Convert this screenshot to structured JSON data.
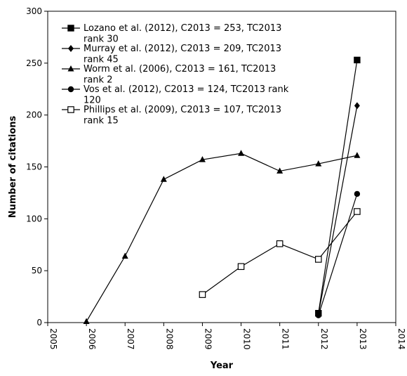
{
  "chart_data": {
    "type": "line",
    "xlabel": "Year",
    "ylabel": "Number of citations",
    "xlim": [
      2005,
      2014
    ],
    "ylim": [
      0,
      300
    ],
    "x_ticks": [
      "2005",
      "2006",
      "2007",
      "2008",
      "2009",
      "2010",
      "2011",
      "2012",
      "2013",
      "2014"
    ],
    "y_ticks": [
      "0",
      "50",
      "100",
      "150",
      "200",
      "250",
      "300"
    ],
    "grid": false,
    "legend_position": "top-left",
    "series": [
      {
        "name": "Lozano et al. (2012), C2013 = 253, TC2013 rank 30",
        "legend_lines": [
          "Lozano et al. (2012), C2013 = 253, TC2013",
          "rank 30"
        ],
        "marker": "square-filled",
        "x": [
          2012,
          2013
        ],
        "y": [
          9,
          253
        ]
      },
      {
        "name": "Murray et al. (2012), C2013 = 209, TC2013 rank 45",
        "legend_lines": [
          "Murray et al. (2012), C2013 = 209, TC2013",
          "rank 45"
        ],
        "marker": "diamond-filled",
        "x": [
          2012,
          2013
        ],
        "y": [
          8,
          209
        ]
      },
      {
        "name": "Worm et al. (2006), C2013 = 161, TC2013 rank 2",
        "legend_lines": [
          "Worm et al. (2006), C2013 = 161, TC2013",
          "rank 2"
        ],
        "marker": "triangle-filled",
        "x": [
          2006,
          2007,
          2008,
          2009,
          2010,
          2011,
          2012,
          2013
        ],
        "y": [
          1,
          64,
          138,
          157,
          163,
          146,
          153,
          161
        ]
      },
      {
        "name": "Vos et al. (2012), C2013 = 124, TC2013 rank 120",
        "legend_lines": [
          "Vos et al. (2012), C2013 = 124, TC2013 rank",
          "120"
        ],
        "marker": "circle-filled",
        "x": [
          2012,
          2013
        ],
        "y": [
          7,
          124
        ]
      },
      {
        "name": "Phillips et al. (2009), C2013 = 107, TC2013 rank 15",
        "legend_lines": [
          "Phillips et al. (2009), C2013 = 107, TC2013",
          "rank 15"
        ],
        "marker": "square-open",
        "x": [
          2009,
          2010,
          2011,
          2012,
          2013
        ],
        "y": [
          27,
          54,
          76,
          61,
          107
        ]
      }
    ]
  }
}
